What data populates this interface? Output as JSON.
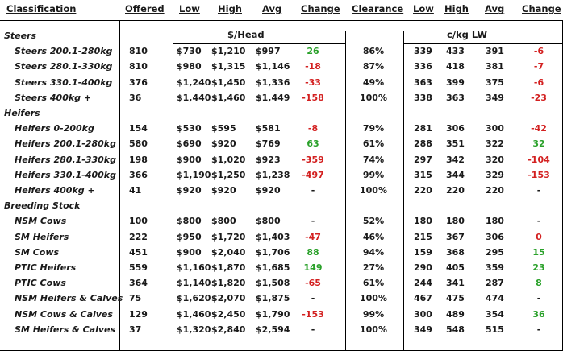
{
  "headers": {
    "classification": "Classification",
    "offered": "Offered",
    "low": "Low",
    "high": "High",
    "avg": "Avg",
    "change": "Change",
    "clearance": "Clearance",
    "low2": "Low",
    "high2": "High",
    "avg2": "Avg",
    "change2": "Change"
  },
  "units": {
    "head": "$/Head",
    "lw": "c/kg LW"
  },
  "sections": [
    {
      "title": "Steers",
      "rows": [
        {
          "name": "Steers 200.1-280kg",
          "offered": "810",
          "low": "$730",
          "high": "$1,210",
          "avg": "$997",
          "change": "26",
          "clearance": "86%",
          "low2": "339",
          "high2": "433",
          "avg2": "391",
          "change2": "-6"
        },
        {
          "name": "Steers 280.1-330kg",
          "offered": "810",
          "low": "$980",
          "high": "$1,315",
          "avg": "$1,146",
          "change": "-18",
          "clearance": "87%",
          "low2": "336",
          "high2": "418",
          "avg2": "381",
          "change2": "-7"
        },
        {
          "name": "Steers 330.1-400kg",
          "offered": "376",
          "low": "$1,240",
          "high": "$1,450",
          "avg": "$1,336",
          "change": "-33",
          "clearance": "49%",
          "low2": "363",
          "high2": "399",
          "avg2": "375",
          "change2": "-6"
        },
        {
          "name": "Steers 400kg +",
          "offered": "36",
          "low": "$1,440",
          "high": "$1,460",
          "avg": "$1,449",
          "change": "-158",
          "clearance": "100%",
          "low2": "338",
          "high2": "363",
          "avg2": "349",
          "change2": "-23"
        }
      ]
    },
    {
      "title": "Heifers",
      "rows": [
        {
          "name": "Heifers 0-200kg",
          "offered": "154",
          "low": "$530",
          "high": "$595",
          "avg": "$581",
          "change": "-8",
          "clearance": "79%",
          "low2": "281",
          "high2": "306",
          "avg2": "300",
          "change2": "-42"
        },
        {
          "name": "Heifers 200.1-280kg",
          "offered": "580",
          "low": "$690",
          "high": "$920",
          "avg": "$769",
          "change": "63",
          "clearance": "61%",
          "low2": "288",
          "high2": "351",
          "avg2": "322",
          "change2": "32"
        },
        {
          "name": "Heifers 280.1-330kg",
          "offered": "198",
          "low": "$900",
          "high": "$1,020",
          "avg": "$923",
          "change": "-359",
          "clearance": "74%",
          "low2": "297",
          "high2": "342",
          "avg2": "320",
          "change2": "-104"
        },
        {
          "name": "Heifers 330.1-400kg",
          "offered": "366",
          "low": "$1,190",
          "high": "$1,250",
          "avg": "$1,238",
          "change": "-497",
          "clearance": "99%",
          "low2": "315",
          "high2": "344",
          "avg2": "329",
          "change2": "-153"
        },
        {
          "name": "Heifers 400kg +",
          "offered": "41",
          "low": "$920",
          "high": "$920",
          "avg": "$920",
          "change": "-",
          "clearance": "100%",
          "low2": "220",
          "high2": "220",
          "avg2": "220",
          "change2": "-"
        }
      ]
    },
    {
      "title": "Breeding Stock",
      "rows": [
        {
          "name": "NSM Cows",
          "offered": "100",
          "low": "$800",
          "high": "$800",
          "avg": "$800",
          "change": "-",
          "clearance": "52%",
          "low2": "180",
          "high2": "180",
          "avg2": "180",
          "change2": "-"
        },
        {
          "name": "SM Heifers",
          "offered": "222",
          "low": "$950",
          "high": "$1,720",
          "avg": "$1,403",
          "change": "-47",
          "clearance": "46%",
          "low2": "215",
          "high2": "367",
          "avg2": "306",
          "change2": "0"
        },
        {
          "name": "SM Cows",
          "offered": "451",
          "low": "$900",
          "high": "$2,040",
          "avg": "$1,706",
          "change": "88",
          "clearance": "94%",
          "low2": "159",
          "high2": "368",
          "avg2": "295",
          "change2": "15"
        },
        {
          "name": "PTIC Heifers",
          "offered": "559",
          "low": "$1,160",
          "high": "$1,870",
          "avg": "$1,685",
          "change": "149",
          "clearance": "27%",
          "low2": "290",
          "high2": "405",
          "avg2": "359",
          "change2": "23"
        },
        {
          "name": "PTIC Cows",
          "offered": "364",
          "low": "$1,140",
          "high": "$1,820",
          "avg": "$1,508",
          "change": "-65",
          "clearance": "61%",
          "low2": "244",
          "high2": "341",
          "avg2": "287",
          "change2": "8"
        },
        {
          "name": "NSM Heifers & Calves",
          "offered": "75",
          "low": "$1,620",
          "high": "$2,070",
          "avg": "$1,875",
          "change": "-",
          "clearance": "100%",
          "low2": "467",
          "high2": "475",
          "avg2": "474",
          "change2": "-"
        },
        {
          "name": "NSM Cows & Calves",
          "offered": "129",
          "low": "$1,460",
          "high": "$2,450",
          "avg": "$1,790",
          "change": "-153",
          "clearance": "99%",
          "low2": "300",
          "high2": "489",
          "avg2": "354",
          "change2": "36"
        },
        {
          "name": "SM Heifers & Calves",
          "offered": "37",
          "low": "$1,320",
          "high": "$2,840",
          "avg": "$2,594",
          "change": "-",
          "clearance": "100%",
          "low2": "349",
          "high2": "548",
          "avg2": "515",
          "change2": "-"
        }
      ]
    }
  ],
  "colors": {
    "positive": "#2aa12a",
    "negative": "#d32020",
    "text": "#1a1a1a",
    "rule": "#000000"
  }
}
